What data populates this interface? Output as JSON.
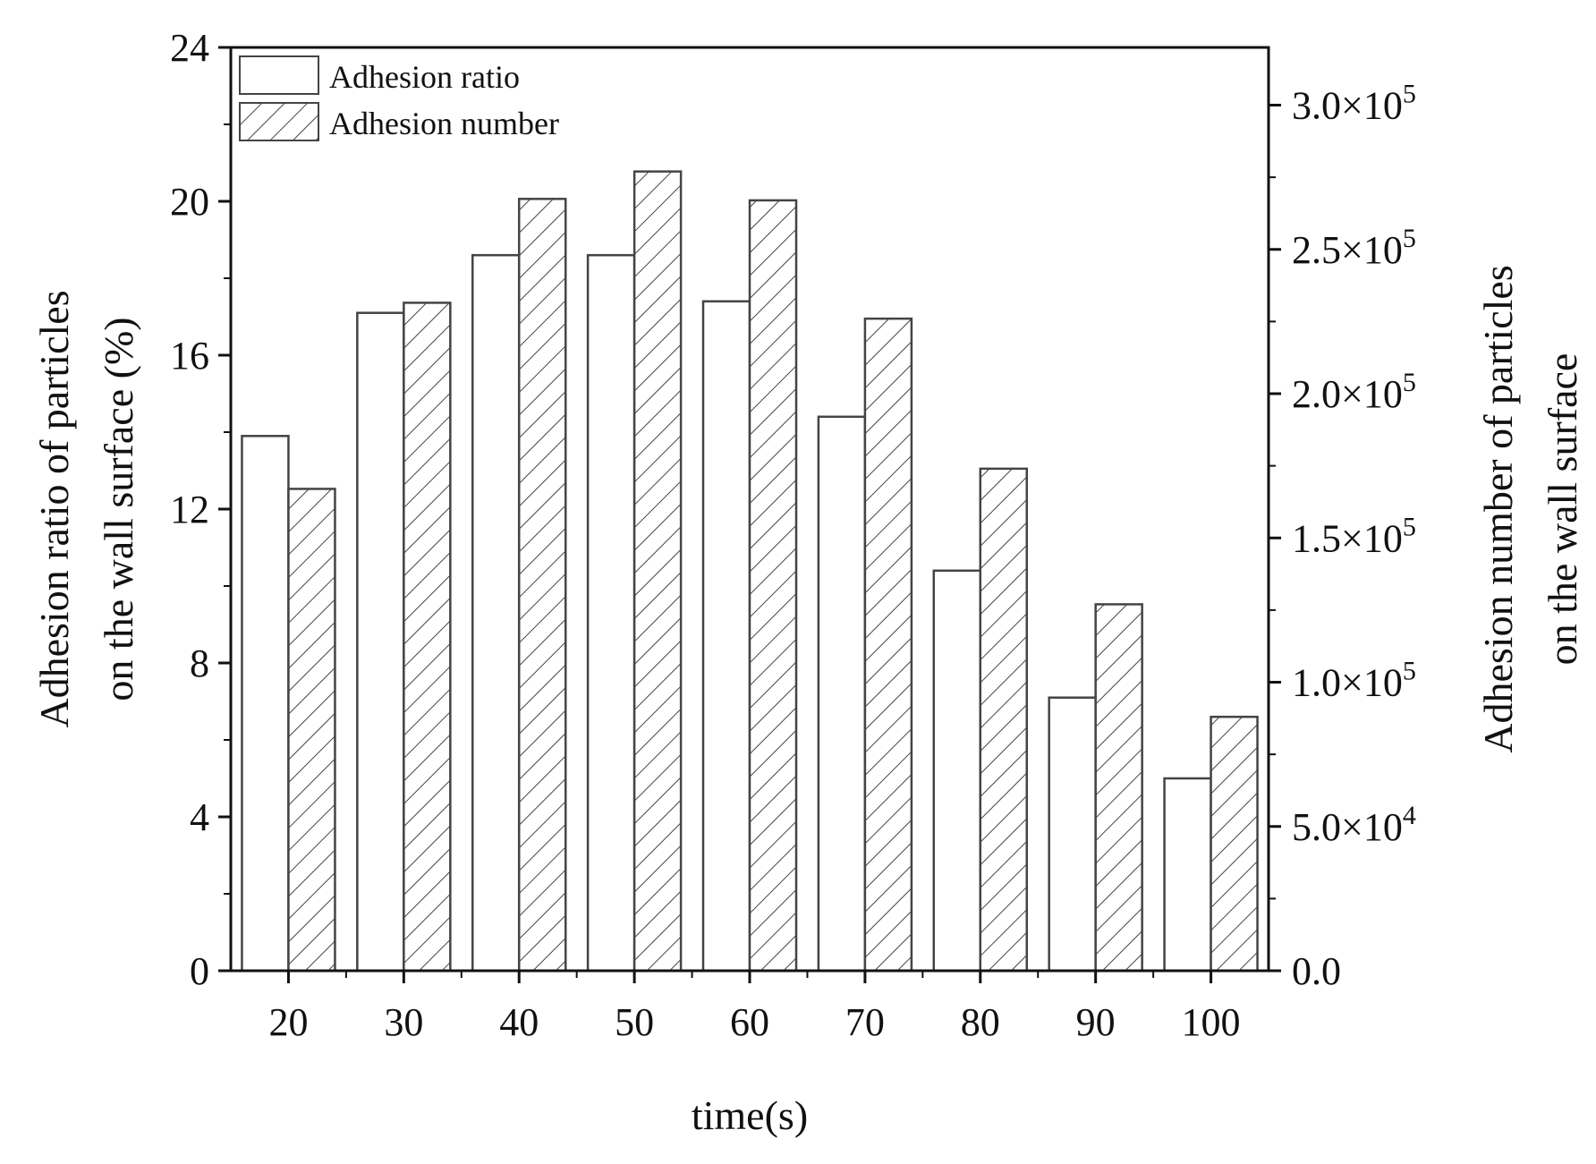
{
  "chart_data": {
    "type": "bar",
    "categories": [
      "20",
      "30",
      "40",
      "50",
      "60",
      "70",
      "80",
      "90",
      "100"
    ],
    "series": [
      {
        "name": "Adhesion ratio",
        "axis": "left",
        "pattern": "none",
        "values": [
          13.9,
          17.1,
          18.6,
          18.6,
          17.4,
          14.4,
          10.4,
          7.1,
          5.0
        ]
      },
      {
        "name": "Adhesion number",
        "axis": "right",
        "pattern": "hatch",
        "values": [
          167000,
          231500,
          267500,
          277000,
          267000,
          226000,
          174000,
          127000,
          88000
        ]
      }
    ],
    "xlabel": "time(s)",
    "ylabel_left_lines": [
      "Adhesion ratio of particles",
      "on the wall surface (%)"
    ],
    "ylabel_right_lines": [
      "Adhesion number of particles",
      "on the wall surface"
    ],
    "ylim_left": [
      0,
      24
    ],
    "yticks_left": [
      "0",
      "4",
      "8",
      "12",
      "16",
      "20",
      "24"
    ],
    "ylim_right": [
      0,
      320000
    ],
    "yticks_right": [
      {
        "value": 0,
        "mantissa": "0.0",
        "exponent": ""
      },
      {
        "value": 50000,
        "mantissa": "5.0×10",
        "exponent": "4"
      },
      {
        "value": 100000,
        "mantissa": "1.0×10",
        "exponent": "5"
      },
      {
        "value": 150000,
        "mantissa": "1.5×10",
        "exponent": "5"
      },
      {
        "value": 200000,
        "mantissa": "2.0×10",
        "exponent": "5"
      },
      {
        "value": 250000,
        "mantissa": "2.5×10",
        "exponent": "5"
      },
      {
        "value": 300000,
        "mantissa": "3.0×10",
        "exponent": "5"
      }
    ],
    "legend_position": "top-left",
    "grid": false,
    "colors": {
      "bar_stroke": "#444444",
      "axis": "#111111",
      "hatch": "#444444",
      "fill": "#ffffff"
    }
  }
}
